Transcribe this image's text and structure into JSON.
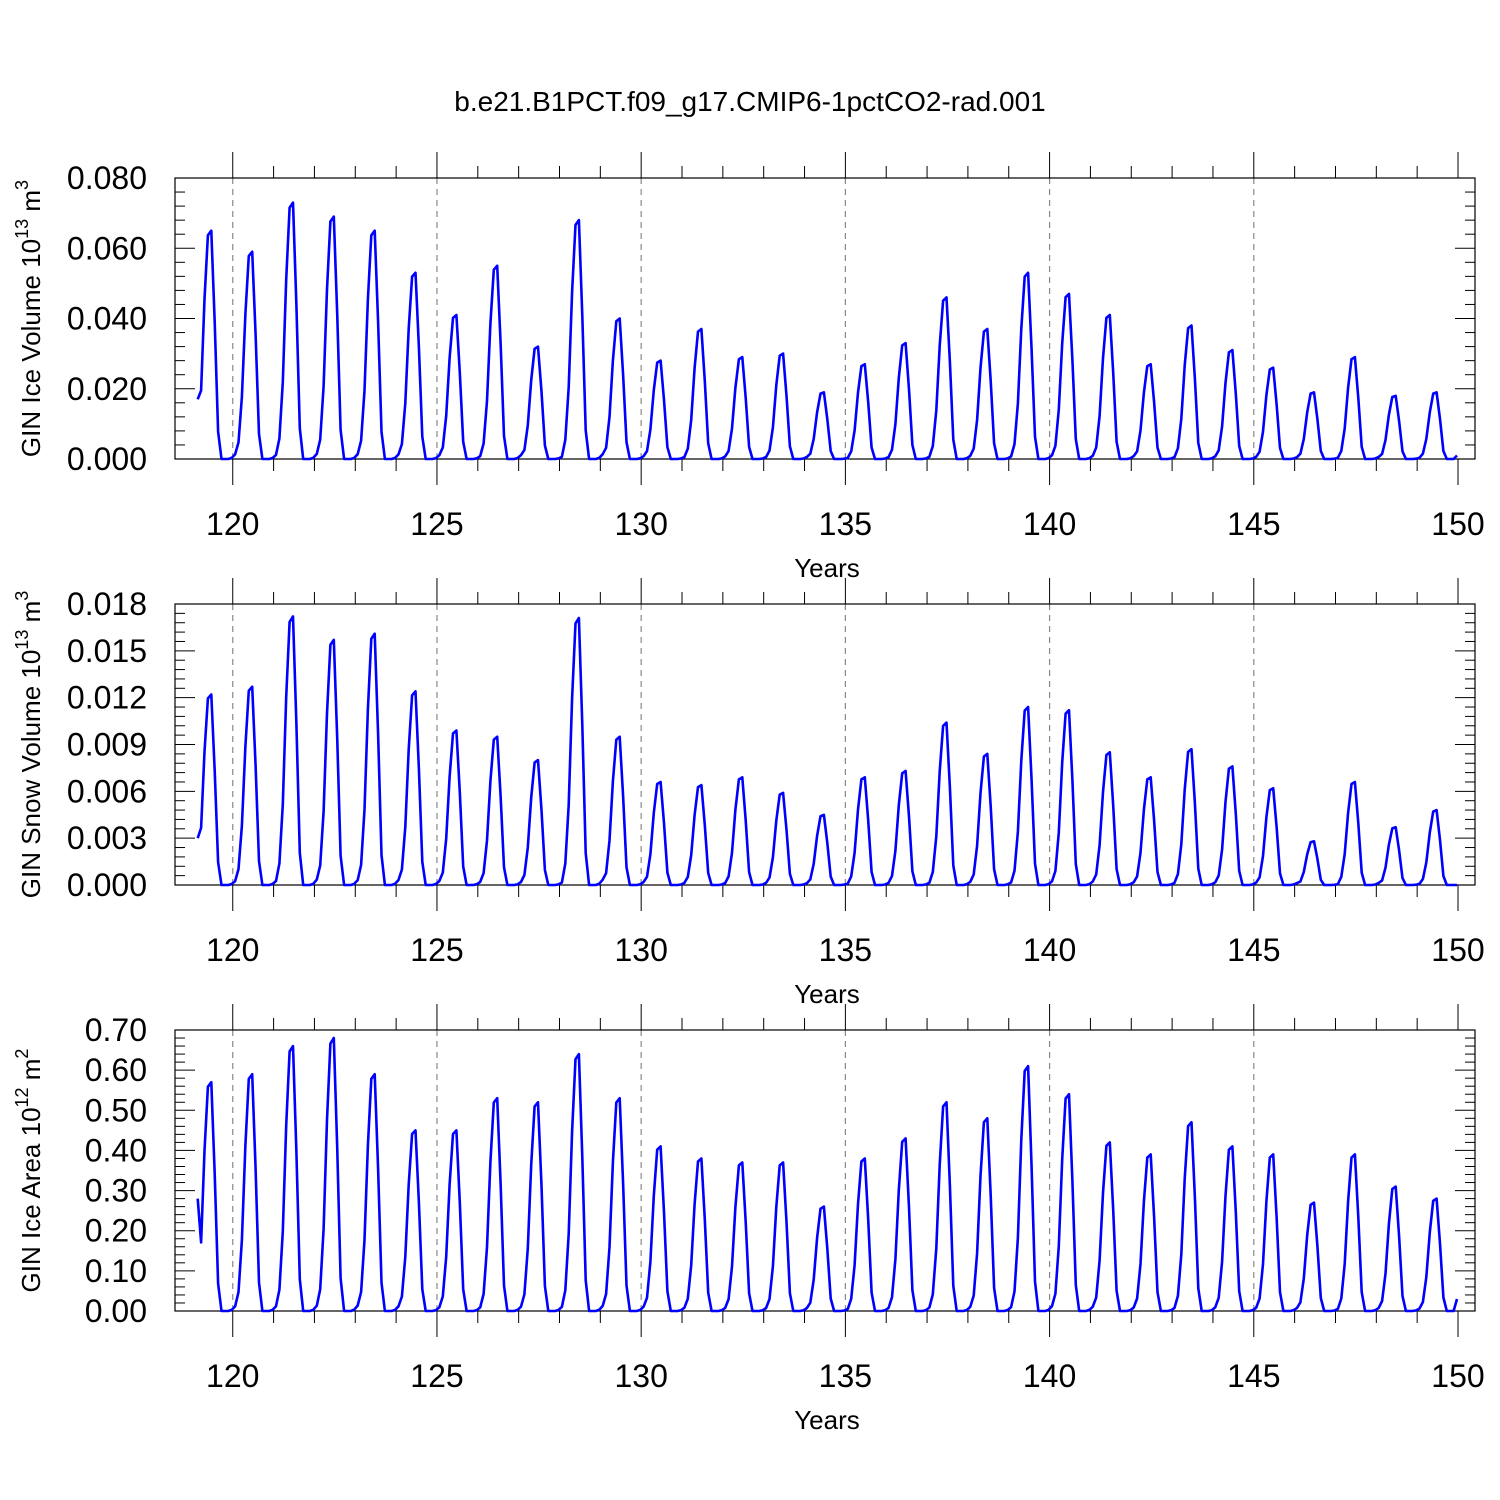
{
  "title": "b.e21.B1PCT.f09_g17.CMIP6-1pctCO2-rad.001",
  "chart_data": [
    {
      "type": "line",
      "xlabel": "Years",
      "ylabel": "GIN Ice Volume 10",
      "ylabel_exp": "13",
      "ylabel_unit": " m",
      "ylabel_unit_exp": "3",
      "xlim": [
        119.1,
        150.0
      ],
      "ylim": [
        0.0,
        0.08
      ],
      "xticks": [
        120,
        125,
        130,
        135,
        140,
        145,
        150
      ],
      "yticks": [
        0.0,
        0.02,
        0.04,
        0.06,
        0.08
      ],
      "ytick_labels": [
        "0.000",
        "0.020",
        "0.040",
        "0.060",
        "0.080"
      ],
      "grid": "vertical dashed at major x ticks",
      "series_color": "#0000ff",
      "annual_peaks": [
        0.065,
        0.059,
        0.073,
        0.069,
        0.065,
        0.053,
        0.041,
        0.055,
        0.032,
        0.068,
        0.04,
        0.028,
        0.037,
        0.029,
        0.03,
        0.019,
        0.027,
        0.033,
        0.046,
        0.037,
        0.053,
        0.047,
        0.041,
        0.027,
        0.038,
        0.031,
        0.026,
        0.019,
        0.029,
        0.018,
        0.019
      ],
      "start_value": 0.017,
      "end_value": 0.001
    },
    {
      "type": "line",
      "xlabel": "Years",
      "ylabel": "GIN Snow Volume 10",
      "ylabel_exp": "13",
      "ylabel_unit": " m",
      "ylabel_unit_exp": "3",
      "xlim": [
        119.1,
        150.0
      ],
      "ylim": [
        0.0,
        0.018
      ],
      "xticks": [
        120,
        125,
        130,
        135,
        140,
        145,
        150
      ],
      "yticks": [
        0.0,
        0.003,
        0.006,
        0.009,
        0.012,
        0.015,
        0.018
      ],
      "ytick_labels": [
        "0.000",
        "0.003",
        "0.006",
        "0.009",
        "0.012",
        "0.015",
        "0.018"
      ],
      "grid": "vertical dashed at major x ticks",
      "series_color": "#0000ff",
      "annual_peaks": [
        0.0122,
        0.0127,
        0.0172,
        0.0157,
        0.0161,
        0.0124,
        0.0099,
        0.0095,
        0.008,
        0.0171,
        0.0095,
        0.0066,
        0.0064,
        0.0069,
        0.0059,
        0.0045,
        0.0069,
        0.0073,
        0.0104,
        0.0084,
        0.0114,
        0.0112,
        0.0085,
        0.0069,
        0.0087,
        0.0076,
        0.0062,
        0.0028,
        0.0066,
        0.0037,
        0.0048
      ],
      "start_value": 0.003,
      "end_value": 0.0
    },
    {
      "type": "line",
      "xlabel": "Years",
      "ylabel": "GIN Ice Area 10",
      "ylabel_exp": "12",
      "ylabel_unit": " m",
      "ylabel_unit_exp": "2",
      "xlim": [
        119.1,
        150.0
      ],
      "ylim": [
        0.0,
        0.7
      ],
      "xticks": [
        120,
        125,
        130,
        135,
        140,
        145,
        150
      ],
      "yticks": [
        0.0,
        0.1,
        0.2,
        0.3,
        0.4,
        0.5,
        0.6,
        0.7
      ],
      "ytick_labels": [
        "0.00",
        "0.10",
        "0.20",
        "0.30",
        "0.40",
        "0.50",
        "0.60",
        "0.70"
      ],
      "grid": "vertical dashed at major x ticks",
      "series_color": "#0000ff",
      "annual_peaks": [
        0.57,
        0.59,
        0.66,
        0.68,
        0.59,
        0.45,
        0.45,
        0.53,
        0.52,
        0.64,
        0.53,
        0.41,
        0.38,
        0.37,
        0.37,
        0.26,
        0.38,
        0.43,
        0.52,
        0.48,
        0.61,
        0.54,
        0.42,
        0.39,
        0.47,
        0.41,
        0.39,
        0.27,
        0.39,
        0.31,
        0.28
      ],
      "start_value": 0.28,
      "end_value": 0.03
    }
  ]
}
